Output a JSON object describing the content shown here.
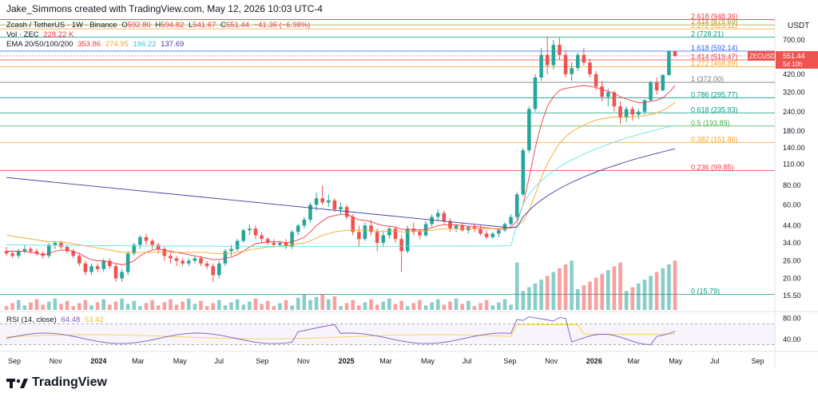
{
  "header": {
    "credit": "Jake_Simmons created with TradingView.com, May 12, 2026 10:03 UTC-4",
    "symbol_line": {
      "symbol": "Zcash / TetherUS · 1W · Binance",
      "o_label": "O",
      "o": "592.80",
      "h_label": "H",
      "h": "594.82",
      "l_label": "L",
      "l": "541.67",
      "c_label": "C",
      "c": "551.44",
      "change": "−41.36 (−6.98%)"
    },
    "vol_line": {
      "label": "Vol · ZEC",
      "value": "228.22 K"
    },
    "ema_line": {
      "label": "EMA 20/50/100/200",
      "v20": "353.86",
      "v50": "274.95",
      "v100": "196.22",
      "v200": "137.69"
    },
    "currency": "USDT"
  },
  "colors": {
    "up": "#26a69a",
    "down": "#ef5350",
    "ema20": "#f23645",
    "ema50": "#f5a623",
    "ema100": "#63e2e9",
    "ema200": "#3f3ba0",
    "rsi": "#7e57c2",
    "rsi_ma": "#f5d14b"
  },
  "price_tag": {
    "symbol": "ZECUSDT",
    "price": "551.44",
    "countdown": "5d 10h"
  },
  "chart_data": [
    {
      "type": "candlestick",
      "title": "Zcash / TetherUS · 1W · Binance",
      "y_scale": "log",
      "ylim": [
        12.5,
        1000
      ],
      "y_ticks": [
        "700.00",
        "560.00",
        "420.00",
        "320.00",
        "240.00",
        "180.00",
        "140.00",
        "110.00",
        "80.00",
        "60.00",
        "44.00",
        "34.00",
        "26.00",
        "20.00",
        "15.50"
      ],
      "x_ticks": [
        "Sep",
        "Nov",
        "2024",
        "Mar",
        "May",
        "Jul",
        "Sep",
        "Nov",
        "2025",
        "Mar",
        "May",
        "Jul",
        "Sep",
        "Nov",
        "2026",
        "Mar",
        "May",
        "Jul",
        "Sep"
      ],
      "fib_levels": [
        {
          "label": "2.618 (948.36)",
          "value": 948.36,
          "color": "#f23645"
        },
        {
          "label": "2.414 (875.69)",
          "value": 875.69,
          "color": "#9c9c48"
        },
        {
          "label": "2.272 (825.11)",
          "value": 825.11,
          "color": "#f5a623"
        },
        {
          "label": "2 (728.21)",
          "value": 728.21,
          "color": "#089981"
        },
        {
          "label": "1.618 (592.14)",
          "value": 592.14,
          "color": "#2962ff"
        },
        {
          "label": "1.414 (519.47)",
          "value": 519.47,
          "color": "#f23645"
        },
        {
          "label": "1.272 (468.89)",
          "value": 468.89,
          "color": "#f5a623"
        },
        {
          "label": "1 (372.00)",
          "value": 372.0,
          "color": "#787b86"
        },
        {
          "label": "0.786 (295.77)",
          "value": 295.77,
          "color": "#089981"
        },
        {
          "label": "0.618 (235.93)",
          "value": 235.93,
          "color": "#089981"
        },
        {
          "label": "0.5 (193.89)",
          "value": 193.89,
          "color": "#4caf50"
        },
        {
          "label": "0.382 (151.86)",
          "value": 151.86,
          "color": "#f5a623"
        },
        {
          "label": "0.236 (99.85)",
          "value": 99.85,
          "color": "#f23645"
        },
        {
          "label": "0 (15.79)",
          "value": 15.79,
          "color": "#089981"
        }
      ],
      "ohlc": [
        [
          30,
          32,
          28,
          29
        ],
        [
          29,
          30,
          27,
          28
        ],
        [
          28,
          31,
          27,
          30
        ],
        [
          30,
          33,
          29,
          31
        ],
        [
          31,
          32,
          29,
          30
        ],
        [
          30,
          31,
          28,
          29
        ],
        [
          29,
          30,
          27,
          28
        ],
        [
          28,
          34,
          27,
          33
        ],
        [
          33,
          35,
          31,
          34
        ],
        [
          34,
          35,
          31,
          32
        ],
        [
          32,
          33,
          29,
          30
        ],
        [
          30,
          31,
          27,
          28
        ],
        [
          28,
          29,
          24,
          25
        ],
        [
          25,
          26,
          21,
          22
        ],
        [
          22,
          25,
          21,
          24
        ],
        [
          24,
          25,
          22,
          23
        ],
        [
          23,
          27,
          22,
          26
        ],
        [
          26,
          27,
          23,
          24
        ],
        [
          24,
          25,
          19,
          20
        ],
        [
          20,
          23,
          19,
          22
        ],
        [
          22,
          30,
          21,
          29
        ],
        [
          29,
          34,
          28,
          33
        ],
        [
          33,
          38,
          31,
          37
        ],
        [
          37,
          39,
          33,
          35
        ],
        [
          35,
          36,
          31,
          33
        ],
        [
          33,
          34,
          29,
          31
        ],
        [
          31,
          32,
          26,
          28
        ],
        [
          28,
          29,
          25,
          27
        ],
        [
          27,
          28,
          24,
          26
        ],
        [
          26,
          27,
          24,
          25
        ],
        [
          25,
          27,
          24,
          26
        ],
        [
          26,
          28,
          25,
          27
        ],
        [
          27,
          28,
          24,
          25
        ],
        [
          25,
          26,
          23,
          24
        ],
        [
          24,
          25,
          19,
          21
        ],
        [
          21,
          26,
          20,
          25
        ],
        [
          25,
          31,
          24,
          30
        ],
        [
          30,
          33,
          28,
          31
        ],
        [
          31,
          36,
          30,
          35
        ],
        [
          35,
          42,
          34,
          41
        ],
        [
          41,
          45,
          38,
          42
        ],
        [
          42,
          44,
          36,
          38
        ],
        [
          38,
          40,
          34,
          36
        ],
        [
          36,
          37,
          33,
          34
        ],
        [
          34,
          36,
          32,
          33
        ],
        [
          33,
          35,
          32,
          34
        ],
        [
          34,
          36,
          31,
          32
        ],
        [
          32,
          41,
          31,
          40
        ],
        [
          40,
          45,
          38,
          44
        ],
        [
          44,
          50,
          42,
          48
        ],
        [
          48,
          62,
          46,
          60
        ],
        [
          60,
          72,
          55,
          66
        ],
        [
          66,
          80,
          60,
          62
        ],
        [
          62,
          70,
          58,
          64
        ],
        [
          64,
          66,
          54,
          56
        ],
        [
          56,
          62,
          52,
          58
        ],
        [
          58,
          60,
          48,
          50
        ],
        [
          50,
          52,
          38,
          40
        ],
        [
          40,
          44,
          32,
          36
        ],
        [
          36,
          46,
          35,
          44
        ],
        [
          44,
          48,
          38,
          40
        ],
        [
          40,
          42,
          30,
          34
        ],
        [
          34,
          40,
          32,
          38
        ],
        [
          38,
          44,
          36,
          42
        ],
        [
          42,
          43,
          34,
          36
        ],
        [
          36,
          38,
          22,
          30
        ],
        [
          30,
          44,
          29,
          42
        ],
        [
          42,
          46,
          38,
          40
        ],
        [
          40,
          42,
          36,
          38
        ],
        [
          38,
          47,
          37,
          45
        ],
        [
          45,
          52,
          43,
          50
        ],
        [
          50,
          56,
          47,
          53
        ],
        [
          53,
          55,
          45,
          47
        ],
        [
          47,
          49,
          40,
          42
        ],
        [
          42,
          45,
          40,
          44
        ],
        [
          44,
          46,
          40,
          41
        ],
        [
          41,
          44,
          39,
          43
        ],
        [
          43,
          45,
          40,
          42
        ],
        [
          42,
          44,
          38,
          39
        ],
        [
          39,
          41,
          36,
          37
        ],
        [
          37,
          40,
          36,
          39
        ],
        [
          39,
          42,
          37,
          41
        ],
        [
          41,
          46,
          40,
          45
        ],
        [
          45,
          52,
          44,
          50
        ],
        [
          50,
          72,
          48,
          70
        ],
        [
          70,
          140,
          68,
          135
        ],
        [
          135,
          260,
          130,
          250
        ],
        [
          250,
          420,
          240,
          400
        ],
        [
          400,
          620,
          380,
          560
        ],
        [
          560,
          740,
          420,
          480
        ],
        [
          480,
          700,
          450,
          650
        ],
        [
          650,
          730,
          520,
          560
        ],
        [
          560,
          600,
          400,
          420
        ],
        [
          420,
          500,
          380,
          460
        ],
        [
          460,
          580,
          440,
          560
        ],
        [
          560,
          620,
          480,
          500
        ],
        [
          500,
          530,
          400,
          420
        ],
        [
          420,
          440,
          330,
          350
        ],
        [
          350,
          380,
          280,
          300
        ],
        [
          300,
          340,
          260,
          320
        ],
        [
          320,
          330,
          240,
          260
        ],
        [
          260,
          280,
          200,
          220
        ],
        [
          220,
          260,
          205,
          250
        ],
        [
          250,
          260,
          210,
          230
        ],
        [
          230,
          250,
          215,
          240
        ],
        [
          240,
          290,
          230,
          285
        ],
        [
          285,
          380,
          280,
          370
        ],
        [
          370,
          400,
          310,
          330
        ],
        [
          330,
          420,
          325,
          415
        ],
        [
          415,
          600,
          410,
          592
        ],
        [
          592,
          595,
          541,
          551
        ]
      ],
      "ema": {
        "ema20": [
          30,
          30,
          30,
          30,
          29.5,
          29,
          28.5,
          29,
          30,
          30.5,
          30.5,
          30,
          29,
          27.5,
          26.5,
          26,
          26,
          25.5,
          25,
          24.5,
          25,
          26,
          28,
          29.5,
          30.5,
          31,
          30.5,
          30,
          29.5,
          29,
          28.5,
          28,
          27.5,
          27,
          26.5,
          26.5,
          27,
          27.5,
          28.5,
          30,
          32,
          33.5,
          34,
          34.5,
          34.5,
          34.5,
          34,
          34.5,
          35.5,
          37,
          40,
          44,
          47,
          50,
          51,
          52,
          52,
          50,
          48,
          47.5,
          46.5,
          45,
          44,
          43.5,
          43,
          41.5,
          41.5,
          41.5,
          41,
          41.5,
          42.5,
          44,
          44.5,
          44.5,
          44.5,
          44,
          43.5,
          43.5,
          43,
          42.5,
          42,
          41.5,
          42,
          43,
          47,
          60,
          90,
          140,
          200,
          260,
          300,
          330,
          340,
          345,
          350,
          355,
          350,
          345,
          335,
          325,
          315,
          300,
          290,
          282,
          275,
          275,
          280,
          285,
          295,
          320,
          354
        ],
        "ema50": [
          38,
          37.5,
          37,
          36.5,
          36,
          35.5,
          35,
          34.5,
          34.5,
          34.5,
          34,
          33.5,
          33,
          32.5,
          32,
          31.5,
          31,
          30.5,
          30,
          29.5,
          29.5,
          29.5,
          29.5,
          29.5,
          29.5,
          29.5,
          29.5,
          29.5,
          29.5,
          29.5,
          29.5,
          29.5,
          29.5,
          29.5,
          29,
          29,
          29,
          29,
          29.5,
          30,
          30.5,
          31,
          31.5,
          32,
          32,
          32.5,
          32.5,
          33,
          33.5,
          34,
          35,
          36.5,
          38,
          39,
          40,
          40.5,
          41,
          41,
          41,
          41,
          41,
          40.5,
          40.5,
          40.5,
          40.5,
          40,
          40,
          40.5,
          40.5,
          40.5,
          41,
          41.5,
          42,
          42,
          42,
          42,
          42,
          42,
          42,
          42,
          42,
          42,
          42,
          42.5,
          43.5,
          47,
          55,
          70,
          90,
          110,
          130,
          150,
          165,
          178,
          188,
          196,
          205,
          212,
          216,
          220,
          222,
          222,
          222,
          223,
          224,
          226,
          230,
          236,
          245,
          258,
          275
        ]
      }
    },
    {
      "type": "bar",
      "title": "Vol · ZEC",
      "note": "weekly volume, colored by candle direction"
    },
    {
      "type": "line",
      "title": "RSI (14, close)",
      "legend": [
        {
          "name": "RSI (14, close)",
          "value": "64.48"
        },
        {
          "name": "MA",
          "value": "53.42"
        }
      ],
      "y_ticks": [
        "80.00",
        "40.00"
      ],
      "ylim": [
        20,
        90
      ]
    }
  ],
  "brand": {
    "name": "TradingView"
  }
}
